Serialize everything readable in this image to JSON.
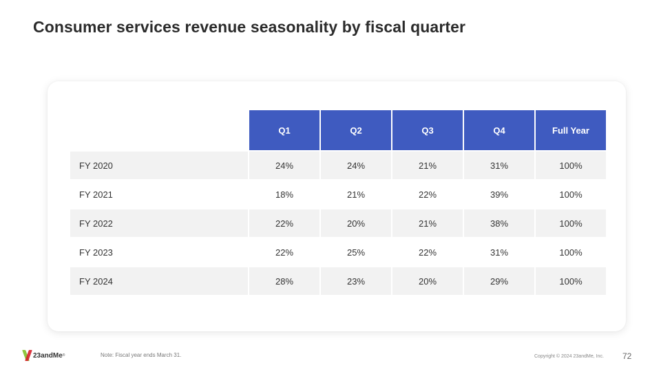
{
  "slide": {
    "title": "Consumer services revenue seasonality by fiscal quarter",
    "table": {
      "headers": [
        "Q1",
        "Q2",
        "Q3",
        "Q4",
        "Full Year"
      ],
      "rows": [
        {
          "label": "FY 2020",
          "values": [
            "24%",
            "24%",
            "21%",
            "31%",
            "100%"
          ]
        },
        {
          "label": "FY 2021",
          "values": [
            "18%",
            "21%",
            "22%",
            "39%",
            "100%"
          ]
        },
        {
          "label": "FY 2022",
          "values": [
            "22%",
            "20%",
            "21%",
            "38%",
            "100%"
          ]
        },
        {
          "label": "FY 2023",
          "values": [
            "22%",
            "25%",
            "22%",
            "31%",
            "100%"
          ]
        },
        {
          "label": "FY 2024",
          "values": [
            "28%",
            "23%",
            "20%",
            "29%",
            "100%"
          ]
        }
      ]
    },
    "header_color": "#3f5bc0",
    "note": "Note: Fiscal year ends March 31.",
    "copyright": "Copyright © 2024 23andMe, Inc.",
    "page_number": "72"
  },
  "logo": {
    "text": "23andMe",
    "reg": "®",
    "icon": "23andme-x-logo-icon"
  },
  "chart_data": {
    "type": "table",
    "title": "Consumer services revenue seasonality by fiscal quarter",
    "columns": [
      "Q1",
      "Q2",
      "Q3",
      "Q4",
      "Full Year"
    ],
    "rows": [
      "FY 2020",
      "FY 2021",
      "FY 2022",
      "FY 2023",
      "FY 2024"
    ],
    "values": [
      [
        24,
        24,
        21,
        31,
        100
      ],
      [
        18,
        21,
        22,
        39,
        100
      ],
      [
        22,
        20,
        21,
        38,
        100
      ],
      [
        22,
        25,
        22,
        31,
        100
      ],
      [
        28,
        23,
        20,
        29,
        100
      ]
    ],
    "unit": "%"
  }
}
